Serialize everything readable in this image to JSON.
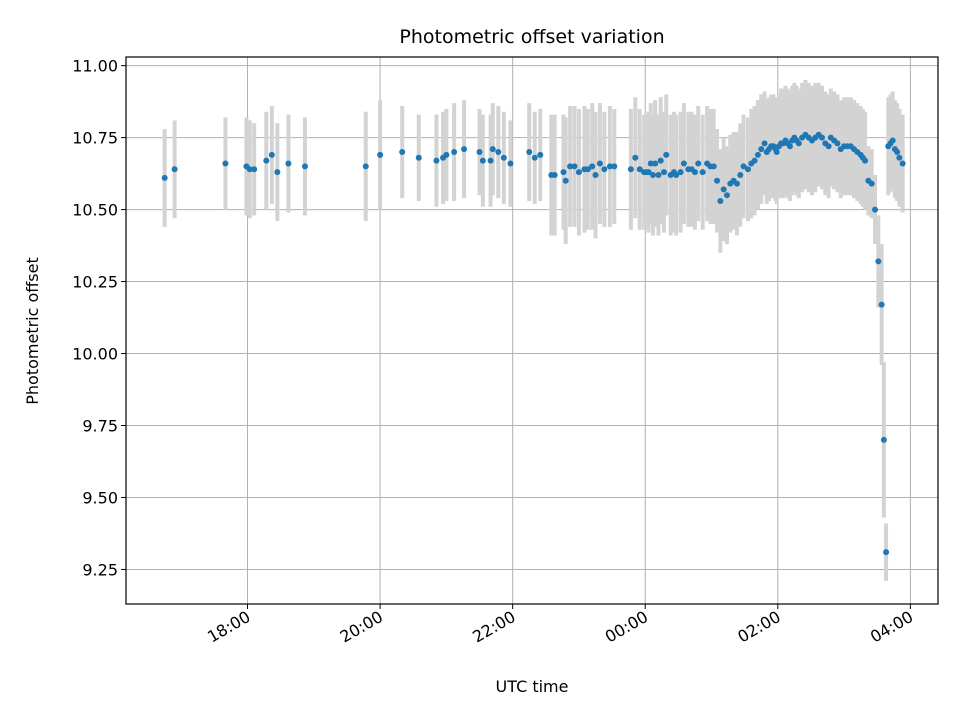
{
  "chart_data": {
    "type": "scatter",
    "title": "Photometric offset variation",
    "xlabel": "UTC time",
    "ylabel": "Photometric offset",
    "x_ticks": [
      {
        "hours": 18,
        "label": "18:00"
      },
      {
        "hours": 20,
        "label": "20:00"
      },
      {
        "hours": 22,
        "label": "22:00"
      },
      {
        "hours": 24,
        "label": "00:00"
      },
      {
        "hours": 26,
        "label": "02:00"
      },
      {
        "hours": 28,
        "label": "04:00"
      }
    ],
    "y_ticks": [
      {
        "value": 11.0,
        "label": "11.00"
      },
      {
        "value": 10.75,
        "label": "10.75"
      },
      {
        "value": 10.5,
        "label": "10.50"
      },
      {
        "value": 10.25,
        "label": "10.25"
      },
      {
        "value": 10.0,
        "label": "10.00"
      },
      {
        "value": 9.75,
        "label": "9.75"
      },
      {
        "value": 9.5,
        "label": "9.50"
      },
      {
        "value": 9.25,
        "label": "9.25"
      }
    ],
    "xlim": [
      "16:10",
      "04:25"
    ],
    "ylim": [
      9.13,
      11.03
    ],
    "grid": true,
    "colors": {
      "points": "#1f77b4",
      "error_bars": "#d3d3d3",
      "grid": "#b0b0b0"
    },
    "series": [
      {
        "x": [
          "16:45",
          "16:54",
          "17:40",
          "17:59",
          "18:02",
          "18:06",
          "18:17",
          "18:22",
          "18:27",
          "18:37",
          "18:52",
          "19:47",
          "20:00",
          "20:20",
          "20:35",
          "20:51",
          "20:57",
          "21:00",
          "21:07",
          "21:16",
          "21:30",
          "21:33",
          "21:40",
          "21:42",
          "21:47",
          "21:52",
          "21:58",
          "22:15",
          "22:20",
          "22:25",
          "22:35",
          "22:38",
          "22:46",
          "22:48",
          "22:52",
          "22:56",
          "23:00",
          "23:05",
          "23:08",
          "23:12",
          "23:15",
          "23:19",
          "23:23",
          "23:28",
          "23:32",
          "23:47",
          "23:51",
          "23:55",
          "23:59",
          "24:01",
          "24:03",
          "24:05",
          "24:07",
          "24:09",
          "24:12",
          "24:14",
          "24:17",
          "24:19",
          "24:23",
          "24:26",
          "24:28",
          "24:32",
          "24:35",
          "24:39",
          "24:42",
          "24:45",
          "24:48",
          "24:52",
          "24:56",
          "24:59",
          "25:02",
          "25:05",
          "25:08",
          "25:11",
          "25:14",
          "25:17",
          "25:20",
          "25:23",
          "25:26",
          "25:29",
          "25:33",
          "25:36",
          "25:39",
          "25:42",
          "25:45",
          "25:48",
          "25:50",
          "25:52",
          "25:54",
          "25:56",
          "25:58",
          "25:59",
          "26:01",
          "26:03",
          "26:05",
          "26:07",
          "26:09",
          "26:11",
          "26:13",
          "26:15",
          "26:17",
          "26:19",
          "26:22",
          "26:25",
          "26:28",
          "26:31",
          "26:34",
          "26:37",
          "26:40",
          "26:43",
          "26:46",
          "26:48",
          "26:51",
          "26:54",
          "26:57",
          "27:00",
          "27:03",
          "27:06",
          "27:09",
          "27:12",
          "27:15",
          "27:17",
          "27:19",
          "27:22",
          "27:25",
          "27:28",
          "27:31",
          "27:34",
          "27:36",
          "27:38",
          "27:40",
          "27:42",
          "27:44",
          "27:46",
          "27:48",
          "27:50",
          "27:53"
        ],
        "y": [
          10.61,
          10.64,
          10.66,
          10.65,
          10.64,
          10.64,
          10.67,
          10.69,
          10.63,
          10.66,
          10.65,
          10.65,
          10.69,
          10.7,
          10.68,
          10.67,
          10.68,
          10.69,
          10.7,
          10.71,
          10.7,
          10.67,
          10.67,
          10.71,
          10.7,
          10.68,
          10.66,
          10.7,
          10.68,
          10.69,
          10.62,
          10.62,
          10.63,
          10.6,
          10.65,
          10.65,
          10.63,
          10.64,
          10.64,
          10.65,
          10.62,
          10.66,
          10.64,
          10.65,
          10.65,
          10.64,
          10.68,
          10.64,
          10.63,
          10.63,
          10.63,
          10.66,
          10.62,
          10.66,
          10.62,
          10.67,
          10.63,
          10.69,
          10.62,
          10.63,
          10.62,
          10.63,
          10.66,
          10.64,
          10.64,
          10.63,
          10.66,
          10.63,
          10.66,
          10.65,
          10.65,
          10.6,
          10.53,
          10.57,
          10.55,
          10.59,
          10.6,
          10.59,
          10.62,
          10.65,
          10.64,
          10.66,
          10.67,
          10.69,
          10.71,
          10.73,
          10.7,
          10.71,
          10.72,
          10.72,
          10.71,
          10.7,
          10.72,
          10.73,
          10.73,
          10.74,
          10.73,
          10.72,
          10.74,
          10.75,
          10.74,
          10.73,
          10.75,
          10.76,
          10.75,
          10.74,
          10.75,
          10.76,
          10.75,
          10.73,
          10.72,
          10.75,
          10.74,
          10.73,
          10.71,
          10.72,
          10.72,
          10.72,
          10.71,
          10.7,
          10.69,
          10.68,
          10.67,
          10.6,
          10.59,
          10.5,
          10.32,
          10.17,
          9.7,
          9.31,
          10.72,
          10.73,
          10.74,
          10.71,
          10.7,
          10.68,
          10.66
        ],
        "yerr": [
          0.17,
          0.17,
          0.16,
          0.17,
          0.17,
          0.16,
          0.17,
          0.17,
          0.17,
          0.17,
          0.17,
          0.19,
          0.19,
          0.16,
          0.15,
          0.16,
          0.16,
          0.16,
          0.17,
          0.17,
          0.15,
          0.16,
          0.16,
          0.16,
          0.16,
          0.16,
          0.15,
          0.17,
          0.16,
          0.16,
          0.21,
          0.21,
          0.2,
          0.22,
          0.21,
          0.21,
          0.22,
          0.22,
          0.21,
          0.22,
          0.22,
          0.21,
          0.2,
          0.21,
          0.2,
          0.21,
          0.21,
          0.21,
          0.2,
          0.2,
          0.21,
          0.21,
          0.21,
          0.22,
          0.21,
          0.22,
          0.21,
          0.21,
          0.21,
          0.21,
          0.21,
          0.21,
          0.21,
          0.2,
          0.2,
          0.2,
          0.2,
          0.2,
          0.2,
          0.2,
          0.2,
          0.18,
          0.18,
          0.18,
          0.17,
          0.17,
          0.17,
          0.18,
          0.18,
          0.18,
          0.18,
          0.19,
          0.19,
          0.19,
          0.19,
          0.18,
          0.18,
          0.18,
          0.18,
          0.18,
          0.18,
          0.18,
          0.18,
          0.19,
          0.19,
          0.19,
          0.19,
          0.19,
          0.19,
          0.19,
          0.19,
          0.19,
          0.19,
          0.19,
          0.19,
          0.19,
          0.19,
          0.18,
          0.18,
          0.18,
          0.18,
          0.17,
          0.17,
          0.17,
          0.17,
          0.17,
          0.17,
          0.17,
          0.17,
          0.17,
          0.17,
          0.17,
          0.17,
          0.12,
          0.12,
          0.12,
          0.16,
          0.21,
          0.27,
          0.1,
          0.17,
          0.17,
          0.17,
          0.17,
          0.17,
          0.17,
          0.17
        ]
      }
    ]
  }
}
